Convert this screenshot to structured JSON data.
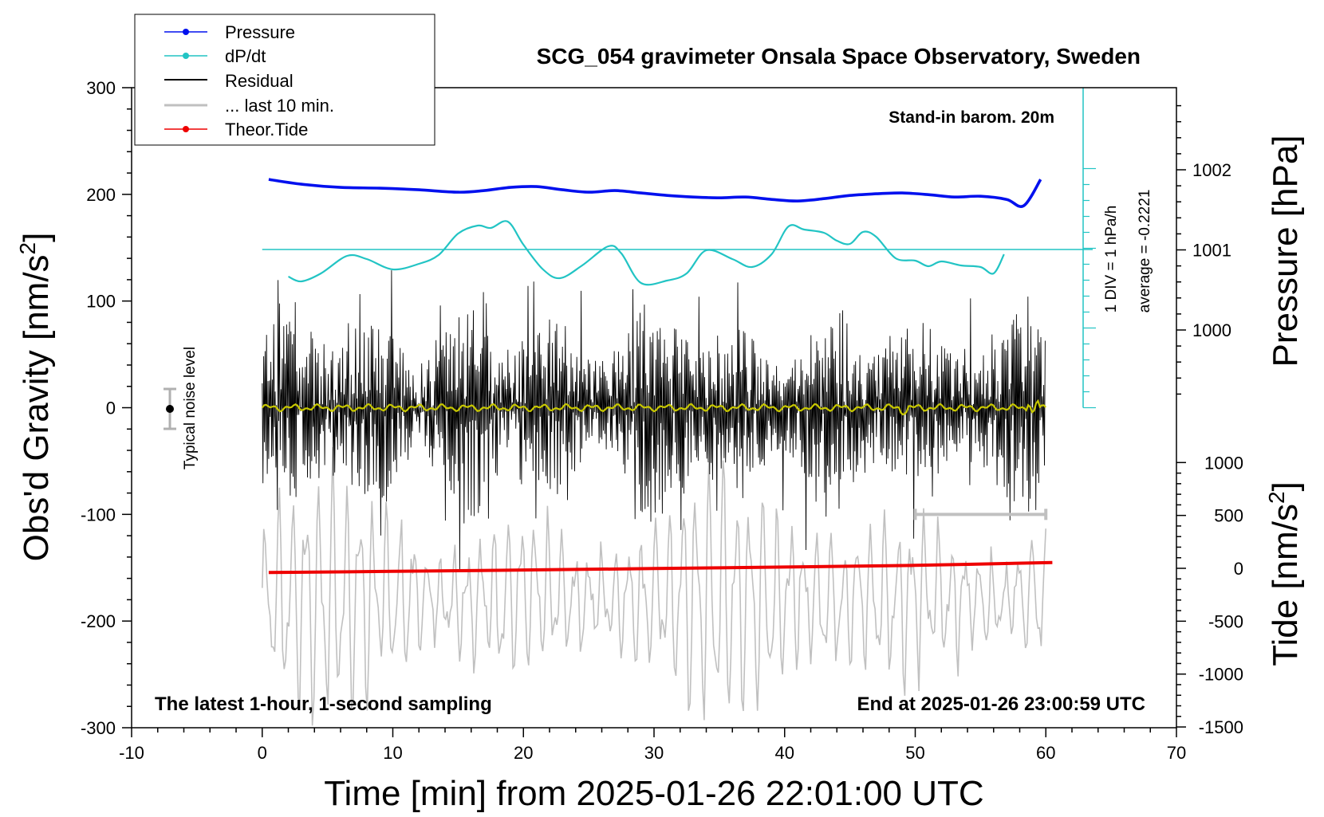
{
  "colors": {
    "pressure": "#0010ee",
    "dpdt": "#22c4c4",
    "residual": "#000000",
    "last10": "#c0c0c0",
    "tide": "#ee0000",
    "smooth": "#c8c800",
    "noise_bar": "#b0b0b0"
  },
  "chart_data": {
    "type": "line",
    "title": "SCG_054 gravimeter Onsala Space Observatory, Sweden",
    "xlabel": "Time [min] from 2025-01-26 22:01:00 UTC",
    "ylabel_left": "Obs'd Gravity [nm/s²]",
    "ylabel_left_text": "Obs'd Gravity [nm/s",
    "ylabel_right_top": "Pressure [hPa]",
    "ylabel_right_bottom_text": "Tide [nm/s",
    "unit_superscript": "2",
    "unit_close": "]",
    "xlim": [
      -10,
      70
    ],
    "ylim": [
      -300,
      300
    ],
    "x_ticks": [
      "-10",
      "0",
      "10",
      "20",
      "30",
      "40",
      "50",
      "60",
      "70"
    ],
    "y_ticks_left": [
      "300",
      "200",
      "100",
      "0",
      "-100",
      "-200",
      "-300"
    ],
    "pressure_axis": {
      "ticks": [
        "1002",
        "1001",
        "1000"
      ],
      "values": [
        1002,
        1001,
        1000
      ]
    },
    "tide_axis": {
      "ticks": [
        "1000",
        "500",
        "0",
        "-500",
        "-1000",
        "-1500"
      ],
      "values": [
        1000,
        500,
        0,
        -500,
        -1000,
        -1500
      ]
    },
    "legend": [
      "Pressure",
      "dP/dt",
      "Residual",
      "... last 10 min.",
      "Theor.Tide"
    ],
    "annotations": {
      "barometer": "Stand-in barom. 20m",
      "dpdt_scale": "1 DIV = 1 hPa/h",
      "dpdt_average": "average = -0.2221",
      "sampling": "The latest 1-hour, 1-second sampling",
      "end_time": "End at 2025-01-26 23:00:59 UTC",
      "noise": "Typical noise level"
    },
    "series": [
      {
        "name": "Pressure",
        "unit": "hPa",
        "x": [
          0.5,
          3,
          6,
          9,
          12,
          15,
          17,
          19,
          21,
          23,
          25,
          27,
          29,
          31,
          33,
          35,
          37,
          39,
          41,
          43,
          45,
          47,
          49,
          51,
          53,
          55,
          57,
          58.3,
          59.6
        ],
        "values": [
          1001.88,
          1001.82,
          1001.78,
          1001.77,
          1001.75,
          1001.72,
          1001.74,
          1001.78,
          1001.79,
          1001.75,
          1001.72,
          1001.74,
          1001.71,
          1001.68,
          1001.66,
          1001.65,
          1001.66,
          1001.63,
          1001.61,
          1001.64,
          1001.68,
          1001.7,
          1001.71,
          1001.69,
          1001.66,
          1001.67,
          1001.63,
          1001.55,
          1001.88
        ]
      },
      {
        "name": "dP/dt",
        "unit": "hPa/h",
        "x": [
          2,
          3,
          4.5,
          6.5,
          8,
          10,
          12,
          13.5,
          15,
          16.5,
          17.5,
          18.8,
          20,
          21.5,
          22.8,
          24.5,
          26.5,
          27.5,
          29,
          31,
          32.5,
          34,
          36,
          37.5,
          39,
          40.3,
          41.5,
          43,
          44,
          45,
          46,
          47,
          48.5,
          50,
          51,
          52,
          53.5,
          55,
          56,
          56.8
        ],
        "values": [
          -1.7,
          -2.0,
          -1.5,
          -0.4,
          -0.6,
          -1.25,
          -0.9,
          -0.35,
          1.0,
          1.5,
          1.35,
          1.75,
          0.3,
          -1.25,
          -1.8,
          -1.0,
          0.2,
          -0.25,
          -2.1,
          -1.95,
          -1.5,
          -0.05,
          -0.6,
          -1.1,
          -0.3,
          1.45,
          1.25,
          1.05,
          0.55,
          0.35,
          1.1,
          0.8,
          -0.55,
          -0.7,
          -1.05,
          -0.75,
          -1.0,
          -1.1,
          -1.5,
          -0.3
        ]
      },
      {
        "name": "Theor.Tide",
        "unit": "nm/s²",
        "x": [
          0.5,
          10,
          20,
          30,
          40,
          50,
          60.5
        ],
        "values": [
          -40,
          -29,
          -16,
          -2,
          12,
          28,
          55
        ]
      }
    ]
  }
}
